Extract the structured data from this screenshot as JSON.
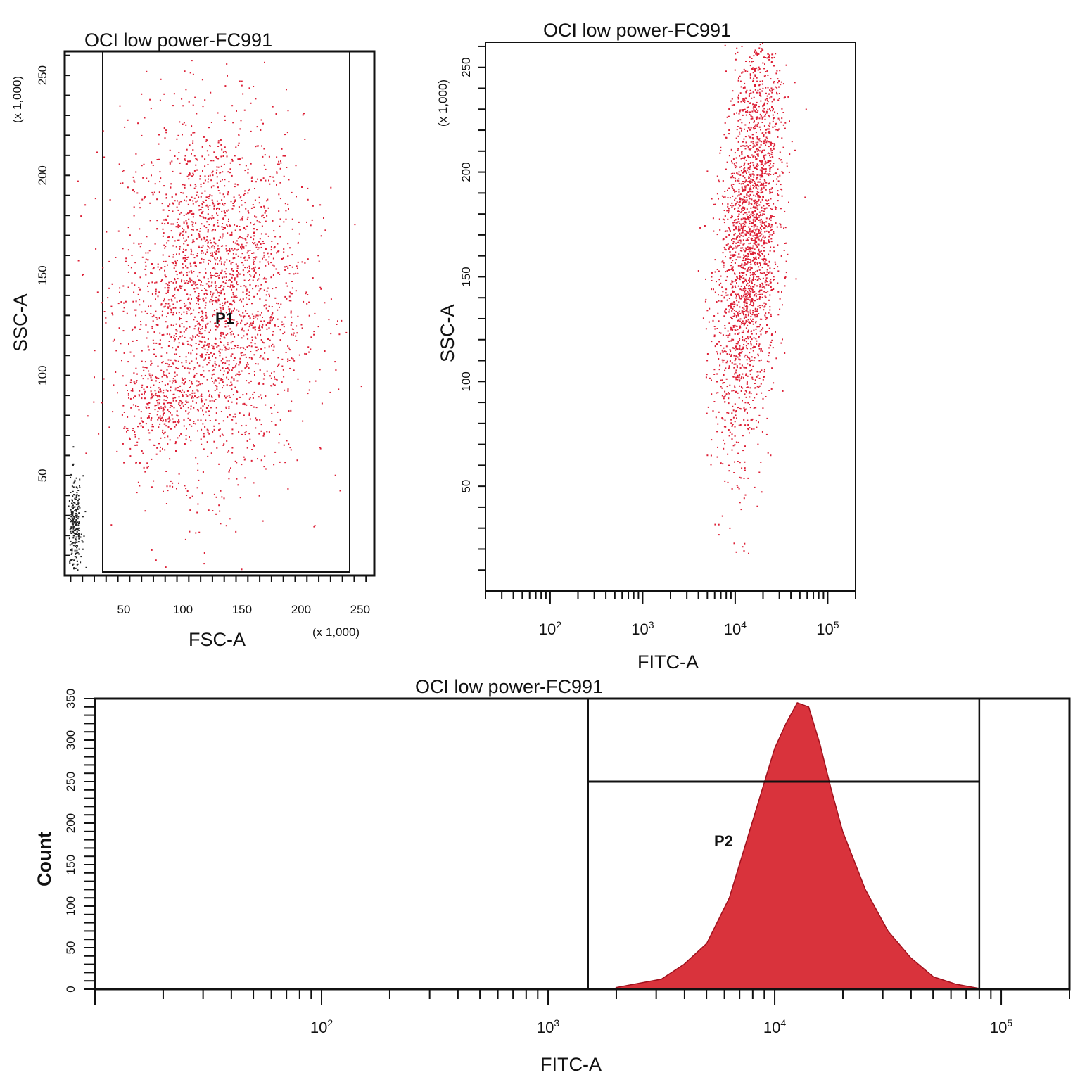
{
  "chart_data": [
    {
      "type": "scatter",
      "title": "OCI low power-FC991",
      "xlabel": "FSC-A",
      "ylabel": "SSC-A",
      "x_scale_note": "(x 1,000)",
      "y_scale_note": "(x 1,000)",
      "xlim": [
        0,
        262
      ],
      "ylim": [
        0,
        262
      ],
      "x_ticks": [
        50,
        100,
        150,
        200,
        250
      ],
      "y_ticks": [
        50,
        100,
        150,
        200,
        250
      ],
      "gate": {
        "name": "P1",
        "x_range": [
          35,
          240
        ],
        "y_range": [
          0,
          262
        ]
      },
      "clusters": [
        {
          "center": [
            125,
            140
          ],
          "spread": [
            38,
            45
          ],
          "count": 2600,
          "color": "#dd1f35"
        },
        {
          "center": [
            80,
            85
          ],
          "spread": [
            15,
            12
          ],
          "count": 250,
          "color": "#dd1f35"
        },
        {
          "center": [
            8,
            25
          ],
          "spread": [
            3,
            12
          ],
          "count": 220,
          "color": "#222222"
        }
      ]
    },
    {
      "type": "scatter",
      "title": "OCI low power-FC991",
      "xlabel": "FITC-A",
      "ylabel": "SSC-A",
      "x_scale": "log",
      "y_scale_note": "(x 1,000)",
      "xlim": [
        20,
        200000
      ],
      "ylim": [
        0,
        262
      ],
      "x_ticks": [
        "10^2",
        "10^3",
        "10^4",
        "10^5"
      ],
      "y_ticks": [
        50,
        100,
        150,
        200,
        250
      ],
      "clusters": [
        {
          "log10_center": 4.15,
          "log10_spread": 0.16,
          "y_center": 170,
          "y_spread": 50,
          "count": 2500,
          "color": "#dd1f35"
        }
      ]
    },
    {
      "type": "area",
      "title": "OCI low power-FC991",
      "xlabel": "FITC-A",
      "ylabel": "Count",
      "x_scale": "log",
      "xlim": [
        10,
        200000
      ],
      "ylim": [
        0,
        350
      ],
      "x_ticks": [
        "10^2",
        "10^3",
        "10^4",
        "10^5"
      ],
      "y_ticks": [
        0,
        50,
        100,
        150,
        200,
        250,
        300,
        350
      ],
      "gate": {
        "name": "P2",
        "x_range": [
          1500,
          80000
        ],
        "level": 250
      },
      "histogram": {
        "log10_x": [
          3.3,
          3.5,
          3.6,
          3.7,
          3.8,
          3.9,
          3.95,
          4.0,
          4.05,
          4.1,
          4.15,
          4.2,
          4.25,
          4.3,
          4.4,
          4.5,
          4.6,
          4.7,
          4.8,
          4.9
        ],
        "count": [
          2,
          12,
          30,
          55,
          110,
          200,
          245,
          290,
          320,
          345,
          340,
          295,
          240,
          190,
          120,
          70,
          38,
          15,
          6,
          1
        ]
      },
      "fill_color": "#d9333c"
    }
  ]
}
